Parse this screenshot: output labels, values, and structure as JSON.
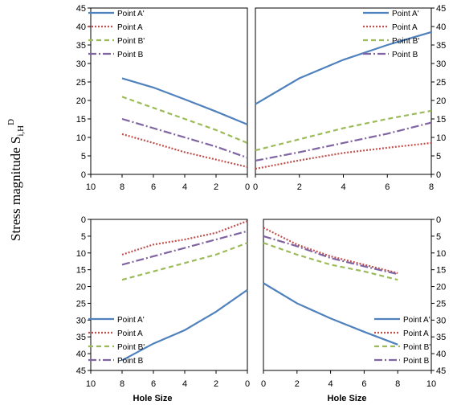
{
  "figure": {
    "ylabel_main": "Stress magnitude S",
    "ylabel_sub": "i,H",
    "ylabel_sup": "D",
    "xlabel_left": "Hole Size",
    "xlabel_right": "Hole Size"
  },
  "series_styles": [
    {
      "name": "Point A'",
      "color": "#4F81BD",
      "dash": "solid"
    },
    {
      "name": "Point A",
      "color": "#C0504D",
      "dash": "dot"
    },
    {
      "name": "Point B'",
      "color": "#9BBB59",
      "dash": "dash"
    },
    {
      "name": "Point B",
      "color": "#8064A2",
      "dash": "dashdot"
    }
  ],
  "chart_data": [
    {
      "type": "line",
      "position": "top-left",
      "xlim": [
        10,
        0
      ],
      "ylim": [
        0,
        45
      ],
      "xticks": [
        "10",
        "8",
        "6",
        "4",
        "2",
        "0"
      ],
      "yticks": [
        "0",
        "5",
        "10",
        "15",
        "20",
        "25",
        "30",
        "35",
        "40",
        "45"
      ],
      "legend": "top-left",
      "x": [
        8,
        6,
        4,
        2,
        0
      ],
      "series": [
        {
          "name": "Point A'",
          "values": [
            26,
            23.5,
            20.3,
            17,
            13.5
          ]
        },
        {
          "name": "Point A",
          "values": [
            10.9,
            8.5,
            6,
            4,
            2
          ]
        },
        {
          "name": "Point B'",
          "values": [
            21,
            18,
            15,
            12,
            8.5
          ]
        },
        {
          "name": "Point B",
          "values": [
            15,
            12.5,
            10,
            7.5,
            4.5
          ]
        }
      ]
    },
    {
      "type": "line",
      "position": "top-right",
      "xlim": [
        0,
        8
      ],
      "ylim": [
        0,
        45
      ],
      "xticks": [
        "0",
        "2",
        "4",
        "6",
        "8"
      ],
      "yticks": [
        "0",
        "5",
        "10",
        "15",
        "20",
        "25",
        "30",
        "35",
        "40",
        "45"
      ],
      "legend": "top-right",
      "x": [
        0,
        2,
        4,
        6,
        8
      ],
      "series": [
        {
          "name": "Point A'",
          "values": [
            19,
            26,
            31,
            35,
            38.5
          ]
        },
        {
          "name": "Point A",
          "values": [
            1.5,
            3.8,
            5.8,
            7.2,
            8.5
          ]
        },
        {
          "name": "Point B'",
          "values": [
            6.5,
            9.5,
            12.5,
            15,
            17.2
          ]
        },
        {
          "name": "Point B",
          "values": [
            3.7,
            6,
            8.5,
            11,
            14
          ]
        }
      ]
    },
    {
      "type": "line",
      "position": "bottom-left",
      "xlim": [
        10,
        0
      ],
      "ylim": [
        45,
        0
      ],
      "xticks": [
        "10",
        "8",
        "6",
        "4",
        "2",
        "0"
      ],
      "yticks": [
        "0",
        "5",
        "10",
        "15",
        "20",
        "25",
        "30",
        "35",
        "40",
        "45"
      ],
      "legend": "bottom-left",
      "x": [
        8,
        6,
        4,
        2,
        0
      ],
      "series": [
        {
          "name": "Point A'",
          "values": [
            42,
            37,
            33,
            27.5,
            21
          ]
        },
        {
          "name": "Point A",
          "values": [
            10.5,
            7.5,
            6,
            4,
            0.5
          ]
        },
        {
          "name": "Point B'",
          "values": [
            18,
            15.5,
            13,
            10.5,
            7
          ]
        },
        {
          "name": "Point B",
          "values": [
            13.5,
            11,
            8.5,
            6,
            3.5
          ]
        }
      ]
    },
    {
      "type": "line",
      "position": "bottom-right",
      "xlim": [
        0,
        10
      ],
      "ylim": [
        45,
        0
      ],
      "xticks": [
        "0",
        "2",
        "4",
        "6",
        "8",
        "10"
      ],
      "yticks": [
        "0",
        "5",
        "10",
        "15",
        "20",
        "25",
        "30",
        "35",
        "40",
        "45"
      ],
      "legend": "bottom-right",
      "x": [
        0,
        2,
        4,
        6,
        8
      ],
      "series": [
        {
          "name": "Point A'",
          "values": [
            19,
            25,
            29.5,
            33.5,
            37.3
          ]
        },
        {
          "name": "Point A",
          "values": [
            2.5,
            7.5,
            11,
            13.5,
            16
          ]
        },
        {
          "name": "Point B'",
          "values": [
            7,
            10.5,
            13.5,
            15.5,
            18
          ]
        },
        {
          "name": "Point B",
          "values": [
            5,
            8,
            11.5,
            14,
            16.3
          ]
        }
      ]
    }
  ]
}
